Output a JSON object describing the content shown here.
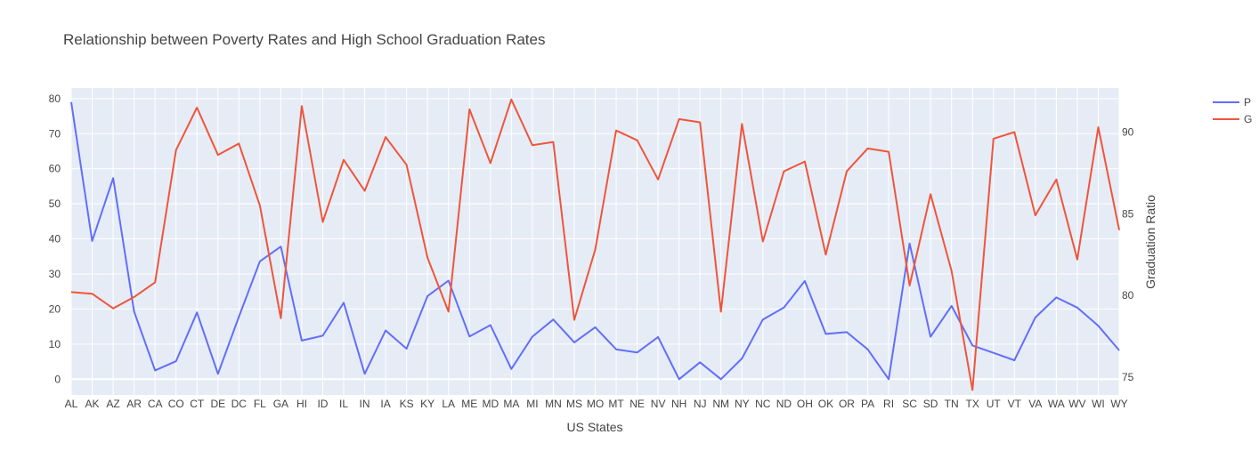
{
  "chart_data": {
    "type": "line",
    "title": "Relationship between Poverty Rates and High School Graduation Rates",
    "xlabel": "US States",
    "ylabel": "",
    "y2label": "Graduation Ratio",
    "categories": [
      "AL",
      "AK",
      "AZ",
      "AR",
      "CA",
      "CO",
      "CT",
      "DE",
      "DC",
      "FL",
      "GA",
      "HI",
      "ID",
      "IL",
      "IN",
      "IA",
      "KS",
      "KY",
      "LA",
      "ME",
      "MD",
      "MA",
      "MI",
      "MN",
      "MS",
      "MO",
      "MT",
      "NE",
      "NV",
      "NH",
      "NJ",
      "NM",
      "NY",
      "NC",
      "ND",
      "OH",
      "OK",
      "OR",
      "PA",
      "RI",
      "SC",
      "SD",
      "TN",
      "TX",
      "UT",
      "VT",
      "VA",
      "WA",
      "WV",
      "WI",
      "WY"
    ],
    "ylim": [
      -4.5,
      83
    ],
    "y2lim": [
      73.9,
      92.7
    ],
    "y_ticks": [
      0,
      10,
      20,
      30,
      40,
      50,
      60,
      70,
      80
    ],
    "y2_ticks": [
      75,
      80,
      85,
      90
    ],
    "grid": true,
    "legend_position": "right",
    "series": [
      {
        "name": "P",
        "axis": "left",
        "color": "#636efa",
        "values": [
          79.0,
          39.4,
          57.3,
          19.3,
          2.5,
          5.1,
          19.0,
          1.5,
          17.8,
          33.6,
          37.8,
          11.0,
          12.4,
          21.8,
          1.5,
          13.9,
          8.7,
          23.7,
          28.1,
          12.2,
          15.4,
          2.9,
          12.1,
          17.0,
          10.5,
          14.8,
          8.5,
          7.6,
          12.0,
          0.0,
          4.8,
          0.0,
          5.9,
          17.0,
          20.4,
          28.0,
          12.9,
          13.4,
          8.5,
          0.0,
          38.7,
          12.1,
          20.9,
          9.6,
          7.5,
          5.4,
          17.6,
          23.3,
          20.4,
          15.2,
          8.2
        ]
      },
      {
        "name": "G",
        "axis": "right",
        "color": "#ef553b",
        "values": [
          80.2,
          80.1,
          79.2,
          79.9,
          80.8,
          88.9,
          91.5,
          88.6,
          89.3,
          85.5,
          78.6,
          91.6,
          84.5,
          88.3,
          86.4,
          89.7,
          88.0,
          82.3,
          79.0,
          91.4,
          88.1,
          92.0,
          89.2,
          89.4,
          78.5,
          82.8,
          90.1,
          89.5,
          87.1,
          90.8,
          90.6,
          79.0,
          90.5,
          83.3,
          87.6,
          88.2,
          82.5,
          87.6,
          89.0,
          88.8,
          80.6,
          86.2,
          81.5,
          74.2,
          89.6,
          90.0,
          84.9,
          87.1,
          82.2,
          90.3,
          84.0
        ]
      }
    ]
  }
}
